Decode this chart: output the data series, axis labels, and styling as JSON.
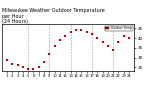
{
  "title": "Milwaukee Weather Outdoor Temperature\nper Hour\n(24 Hours)",
  "hours": [
    1,
    2,
    3,
    4,
    5,
    6,
    7,
    8,
    9,
    10,
    11,
    12,
    13,
    14,
    15,
    16,
    17,
    18,
    19,
    20,
    21,
    22,
    23,
    24
  ],
  "temps": [
    29,
    27,
    26,
    25,
    24,
    24,
    25,
    28,
    32,
    36,
    39,
    41,
    43,
    44,
    44,
    43,
    42,
    40,
    38,
    36,
    34,
    38,
    41,
    40
  ],
  "dot_color": "#cc0000",
  "bg_color": "#ffffff",
  "plot_bg": "#ffffff",
  "grid_color": "#888888",
  "border_color": "#000000",
  "ylim": [
    23,
    47
  ],
  "xlim": [
    0,
    25
  ],
  "ytick_positions": [
    25,
    30,
    35,
    40,
    45
  ],
  "ytick_labels": [
    "25",
    "30",
    "35",
    "40",
    "45"
  ],
  "xtick_positions": [
    1,
    2,
    3,
    4,
    5,
    6,
    7,
    8,
    9,
    10,
    11,
    12,
    13,
    14,
    15,
    16,
    17,
    18,
    19,
    20,
    21,
    22,
    23,
    24
  ],
  "xtick_labels": [
    "1",
    "2",
    "3",
    "4",
    "5",
    "6",
    "7",
    "8",
    "9",
    "10",
    "11",
    "12",
    "13",
    "14",
    "15",
    "16",
    "17",
    "18",
    "19",
    "20",
    "21",
    "22",
    "23",
    "24"
  ],
  "vgrid_positions": [
    5,
    9,
    13,
    17,
    21
  ],
  "legend_color": "#cc0000",
  "legend_text": "Outdoor Temp",
  "title_fontsize": 3.5,
  "tick_fontsize": 3.0,
  "dot_size": 1.5
}
